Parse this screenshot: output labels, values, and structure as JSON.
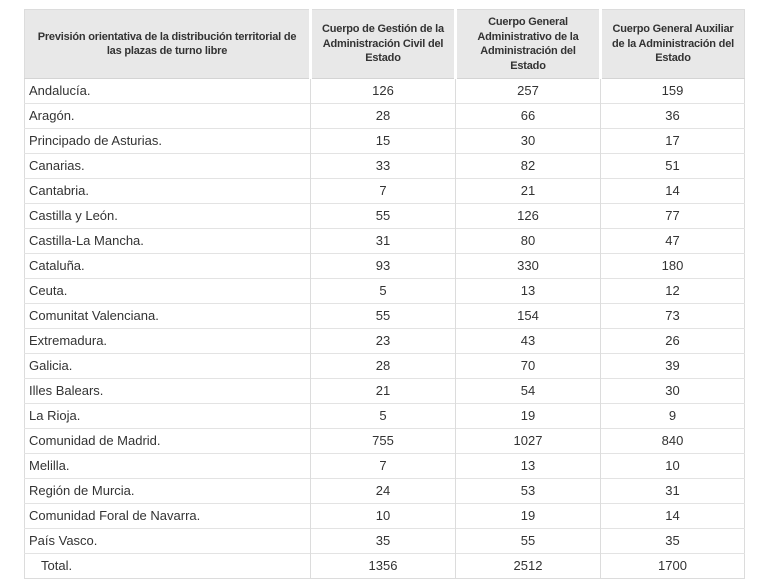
{
  "table": {
    "headers": {
      "territory": "Previsión orientativa de la distribución territorial de las plazas de turno libre",
      "gestion": "Cuerpo de Gestión de la Administración Civil del Estado",
      "administrativo": "Cuerpo General Administrativo de la Administración del Estado",
      "auxiliar": "Cuerpo General Auxiliar de la Administración del Estado"
    },
    "rows": [
      {
        "region": "Andalucía.",
        "values": [
          "126",
          "257",
          "159"
        ]
      },
      {
        "region": "Aragón.",
        "values": [
          "28",
          "66",
          "36"
        ]
      },
      {
        "region": "Principado de Asturias.",
        "values": [
          "15",
          "30",
          "17"
        ]
      },
      {
        "region": "Canarias.",
        "values": [
          "33",
          "82",
          "51"
        ]
      },
      {
        "region": "Cantabria.",
        "values": [
          "7",
          "21",
          "14"
        ]
      },
      {
        "region": "Castilla y León.",
        "values": [
          "55",
          "126",
          "77"
        ]
      },
      {
        "region": "Castilla-La Mancha.",
        "values": [
          "31",
          "80",
          "47"
        ]
      },
      {
        "region": "Cataluña.",
        "values": [
          "93",
          "330",
          "180"
        ]
      },
      {
        "region": "Ceuta.",
        "values": [
          "5",
          "13",
          "12"
        ]
      },
      {
        "region": "Comunitat Valenciana.",
        "values": [
          "55",
          "154",
          "73"
        ]
      },
      {
        "region": "Extremadura.",
        "values": [
          "23",
          "43",
          "26"
        ]
      },
      {
        "region": "Galicia.",
        "values": [
          "28",
          "70",
          "39"
        ]
      },
      {
        "region": "Illes Balears.",
        "values": [
          "21",
          "54",
          "30"
        ]
      },
      {
        "region": "La Rioja.",
        "values": [
          "5",
          "19",
          "9"
        ]
      },
      {
        "region": "Comunidad de Madrid.",
        "values": [
          "755",
          "1027",
          "840"
        ]
      },
      {
        "region": "Melilla.",
        "values": [
          "7",
          "13",
          "10"
        ]
      },
      {
        "region": "Región de Murcia.",
        "values": [
          "24",
          "53",
          "31"
        ]
      },
      {
        "region": "Comunidad Foral de Navarra.",
        "values": [
          "10",
          "19",
          "14"
        ]
      },
      {
        "region": "País Vasco.",
        "values": [
          "35",
          "55",
          "35"
        ]
      }
    ],
    "total": {
      "label": "Total.",
      "values": [
        "1356",
        "2512",
        "1700"
      ]
    }
  },
  "colors": {
    "header_bg": "#e8e8e8",
    "border": "#dcdcdc",
    "row_separator": "#e3e3e3",
    "text": "#333333"
  }
}
